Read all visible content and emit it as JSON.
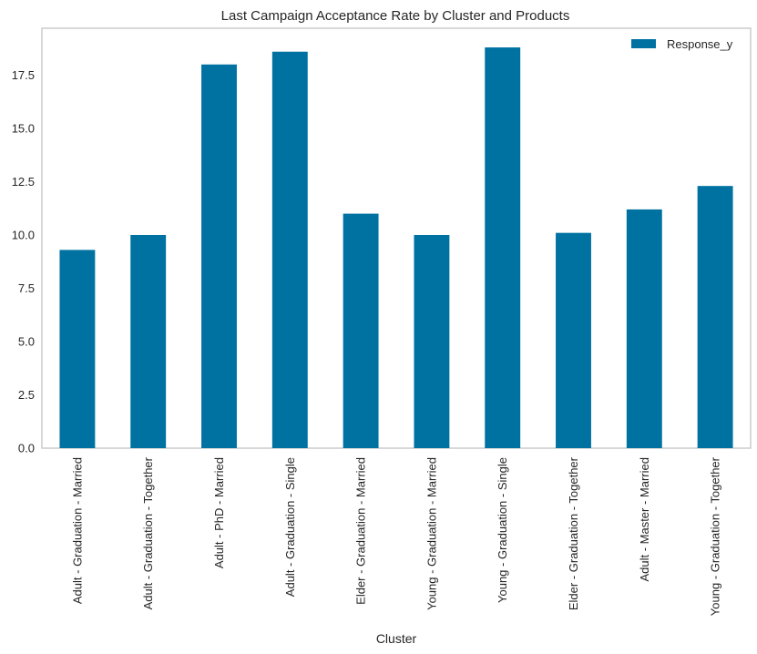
{
  "chart_data": {
    "type": "bar",
    "title": "Last Campaign Acceptance Rate by Cluster and Products",
    "xlabel": "Cluster",
    "ylabel": "",
    "categories": [
      "Adult - Graduation - Married",
      "Adult - Graduation - Together",
      "Adult - PhD - Married",
      "Adult - Graduation - Single",
      "Elder - Graduation - Married",
      "Young - Graduation - Married",
      "Young - Graduation - Single",
      "Elder - Graduation - Together",
      "Adult - Master - Married",
      "Young - Graduation - Together"
    ],
    "series": [
      {
        "name": "Response_y",
        "color": "#0072a2",
        "values": [
          9.3,
          10.0,
          18.0,
          18.6,
          11.0,
          10.0,
          18.8,
          10.1,
          11.2,
          12.3
        ]
      }
    ],
    "ylim": [
      0,
      19.7
    ],
    "yticks": [
      "0.0",
      "2.5",
      "5.0",
      "7.5",
      "10.0",
      "12.5",
      "15.0",
      "17.5"
    ],
    "grid": false,
    "legend_position": "top-right"
  }
}
